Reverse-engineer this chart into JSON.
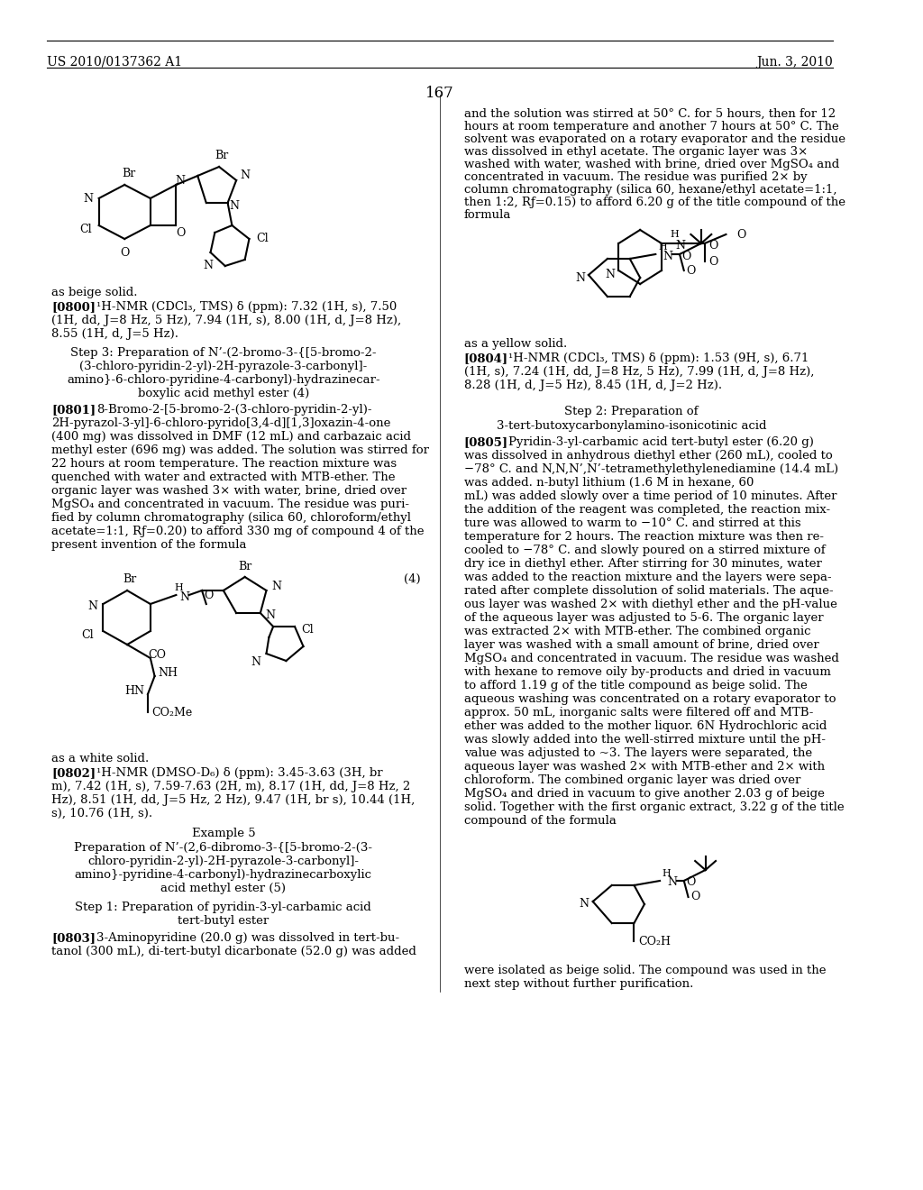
{
  "page_number": "167",
  "header_left": "US 2010/0137362 A1",
  "header_right": "Jun. 3, 2010",
  "background_color": "#ffffff",
  "text_color": "#000000",
  "font_size_body": 9.5,
  "font_size_header": 10,
  "font_size_page_num": 12
}
